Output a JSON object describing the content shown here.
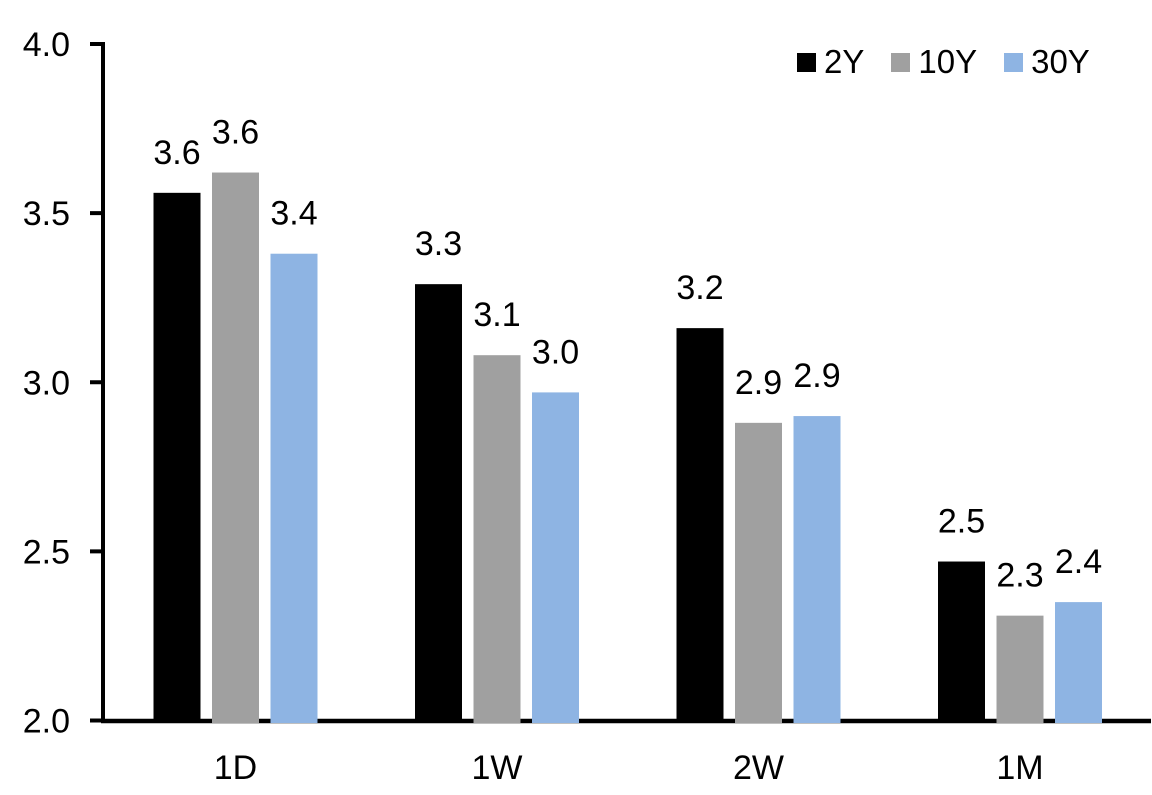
{
  "chart_data": {
    "type": "bar",
    "title": "",
    "xlabel": "",
    "ylabel": "",
    "categories": [
      "1D",
      "1W",
      "2W",
      "1M"
    ],
    "series": [
      {
        "name": "2Y",
        "color": "#000000",
        "values": [
          3.56,
          3.29,
          3.16,
          2.47
        ],
        "labels": [
          "3.6",
          "3.3",
          "3.2",
          "2.5"
        ]
      },
      {
        "name": "10Y",
        "color": "#A0A0A0",
        "values": [
          3.62,
          3.08,
          2.88,
          2.31
        ],
        "labels": [
          "3.6",
          "3.1",
          "2.9",
          "2.3"
        ]
      },
      {
        "name": "30Y",
        "color": "#8EB4E3",
        "values": [
          3.38,
          2.97,
          2.9,
          2.35
        ],
        "labels": [
          "3.4",
          "3.0",
          "2.9",
          "2.4"
        ]
      }
    ],
    "ylim": [
      2.0,
      4.0
    ],
    "yticks": [
      {
        "value": 2.0,
        "label": "2.0"
      },
      {
        "value": 2.5,
        "label": "2.5"
      },
      {
        "value": 3.0,
        "label": "3.0"
      },
      {
        "value": 3.5,
        "label": "3.5"
      },
      {
        "value": 4.0,
        "label": "4.0"
      }
    ],
    "grid": false,
    "legend_position": "top-right",
    "axis_color": "#000000",
    "text_color": "#000000",
    "background_color": "#ffffff"
  }
}
